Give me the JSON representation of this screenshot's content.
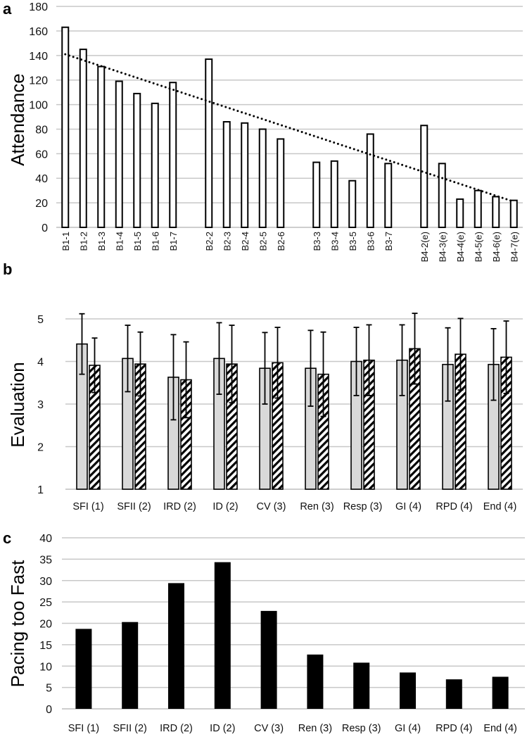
{
  "chart_data": [
    {
      "panel": "a",
      "type": "bar",
      "ylabel": "Attendance",
      "ylim": [
        0,
        180
      ],
      "yticks": [
        0,
        20,
        40,
        60,
        80,
        100,
        120,
        140,
        160,
        180
      ],
      "categories": [
        "B1-1",
        "B1-2",
        "B1-3",
        "B1-4",
        "B1-5",
        "B1-6",
        "B1-7",
        "B2-2",
        "B2-3",
        "B2-4",
        "B2-5",
        "B2-6",
        "B3-3",
        "B3-4",
        "B3-5",
        "B3-6",
        "B3-7",
        "B4-2(e)",
        "B4-3(e)",
        "B4-4(e)",
        "B4-5(e)",
        "B4-6(e)",
        "B4-7(e)"
      ],
      "values": [
        163,
        145,
        131,
        119,
        109,
        101,
        118,
        137,
        86,
        85,
        80,
        72,
        53,
        54,
        38,
        76,
        52,
        83,
        52,
        23,
        30,
        25,
        22
      ],
      "trendline": {
        "type": "linear",
        "start": 141,
        "end": 21,
        "style": "dotted"
      },
      "grid": true
    },
    {
      "panel": "b",
      "type": "bar",
      "ylabel": "Evaluation",
      "ylim": [
        1,
        5
      ],
      "yticks": [
        1,
        2,
        3,
        4,
        5
      ],
      "categories": [
        "SFI (1)",
        "SFII (2)",
        "IRD (2)",
        "ID (2)",
        "CV (3)",
        "Ren (3)",
        "Resp (3)",
        "GI (4)",
        "RPD (4)",
        "End (4)"
      ],
      "series": [
        {
          "name": "gray",
          "fill": "#d9d9d9",
          "values": [
            4.41,
            4.07,
            3.63,
            4.07,
            3.84,
            3.84,
            4.0,
            4.03,
            3.93,
            3.93
          ],
          "error": [
            0.71,
            0.78,
            1.0,
            0.84,
            0.84,
            0.89,
            0.8,
            0.83,
            0.86,
            0.84
          ]
        },
        {
          "name": "hatched",
          "fill": "hatch",
          "values": [
            3.91,
            3.94,
            3.57,
            3.94,
            3.97,
            3.7,
            4.03,
            4.3,
            4.17,
            4.1
          ],
          "error": [
            0.64,
            0.75,
            0.89,
            0.91,
            0.83,
            0.99,
            0.83,
            0.83,
            0.84,
            0.85
          ]
        }
      ],
      "grid": true
    },
    {
      "panel": "c",
      "type": "bar",
      "ylabel": "Pacing too Fast",
      "ylim": [
        0,
        40
      ],
      "yticks": [
        0,
        5,
        10,
        15,
        20,
        25,
        30,
        35,
        40
      ],
      "categories": [
        "SFI (1)",
        "SFII (2)",
        "IRD (2)",
        "ID (2)",
        "CV (3)",
        "Ren (3)",
        "Resp (3)",
        "GI (4)",
        "RPD (4)",
        "End (4)"
      ],
      "values": [
        18.7,
        20.3,
        29.4,
        34.3,
        22.9,
        12.7,
        10.8,
        8.5,
        6.9,
        7.5
      ],
      "bar_color": "#000000",
      "grid": true
    }
  ]
}
